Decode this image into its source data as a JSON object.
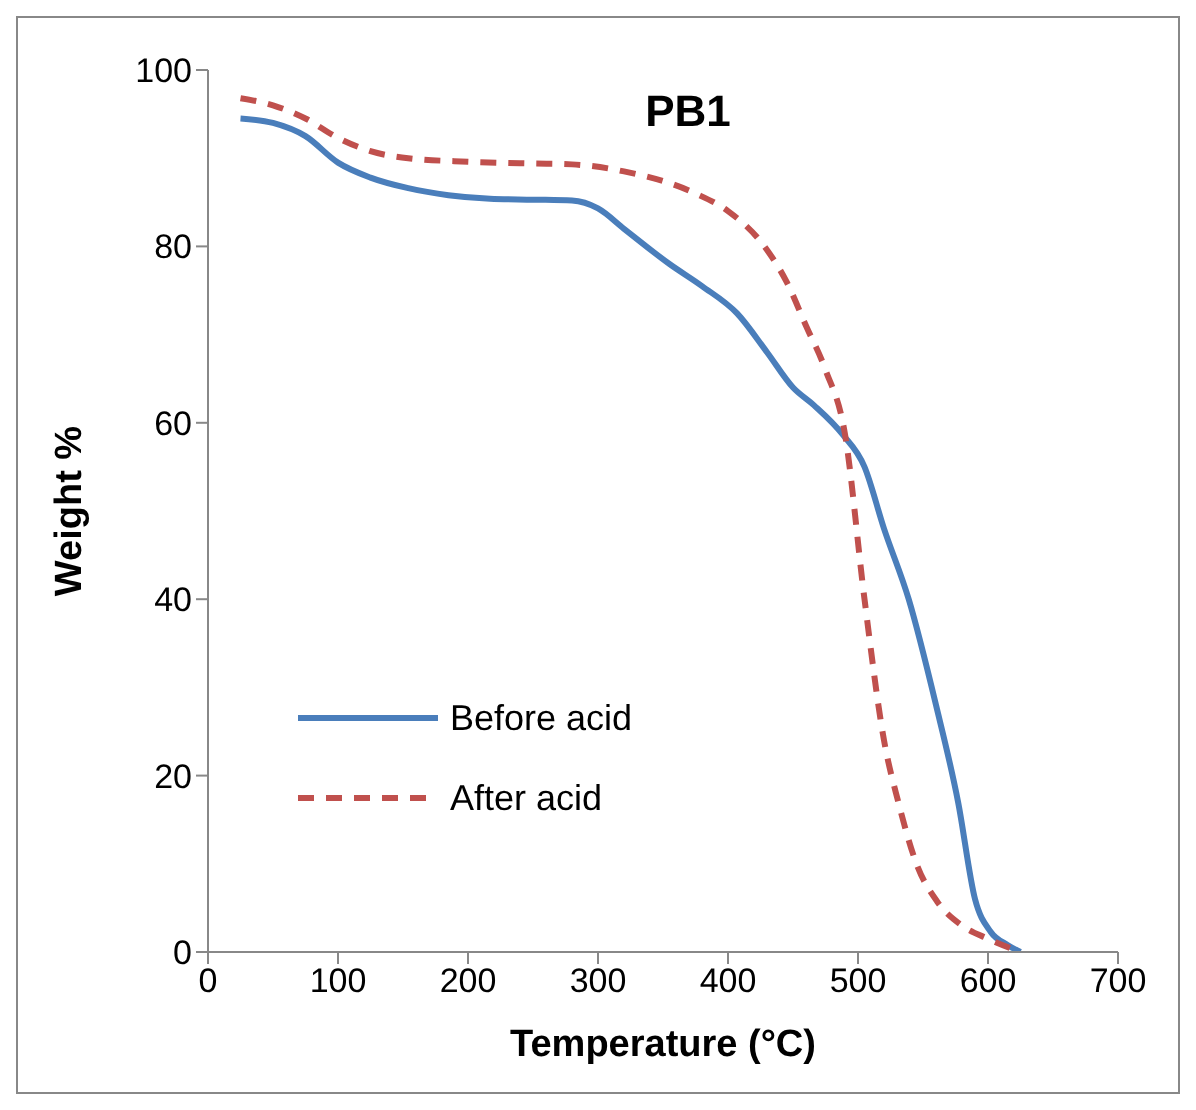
{
  "chart_data": {
    "type": "line",
    "title": "PB1",
    "xlabel": "Temperature (°C)",
    "ylabel": "Weight %",
    "xlim": [
      0,
      700
    ],
    "xticks": [
      0,
      100,
      200,
      300,
      400,
      500,
      600,
      700
    ],
    "ylim": [
      0,
      100
    ],
    "yticks": [
      0,
      20,
      40,
      60,
      80,
      100
    ],
    "grid": false,
    "legend": "bottom left",
    "series": [
      {
        "name": "Before acid",
        "color": "#4a7ebb",
        "line_style": "solid",
        "x": [
          25,
          50,
          75,
          100,
          125,
          154,
          185,
          217,
          250,
          280,
          300,
          320,
          355,
          380,
          407,
          430,
          450,
          466,
          488,
          505,
          520,
          539,
          560,
          577,
          590,
          602,
          615,
          625
        ],
        "values": [
          94.5,
          94,
          92.5,
          89.5,
          87.8,
          86.6,
          85.8,
          85.4,
          85.3,
          85.2,
          84.3,
          82,
          78,
          75.5,
          72.4,
          68,
          64,
          62,
          58.7,
          55,
          48,
          40,
          28,
          17,
          6,
          2.3,
          0.8,
          0
        ]
      },
      {
        "name": "After acid",
        "color": "#c0504d",
        "line_style": "dashed",
        "x": [
          25,
          50,
          75,
          100,
          125,
          154,
          200,
          250,
          280,
          320,
          375,
          400,
          428,
          445,
          460,
          475,
          490,
          505,
          520,
          531,
          545,
          561,
          580,
          600,
          625
        ],
        "values": [
          96.8,
          96,
          94.5,
          92.3,
          90.8,
          90,
          89.6,
          89.4,
          89.3,
          88.5,
          86,
          84,
          80,
          76,
          71,
          66,
          58.7,
          40,
          24,
          17,
          10,
          5.7,
          3,
          1.5,
          0
        ]
      }
    ]
  }
}
